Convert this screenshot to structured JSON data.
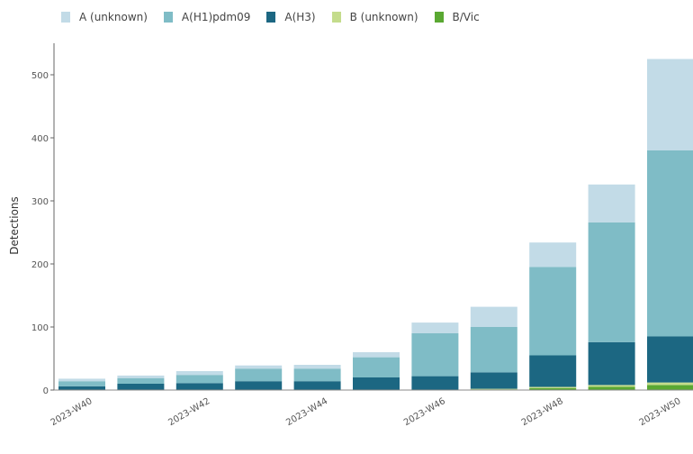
{
  "chart_data": {
    "type": "bar",
    "stacked": true,
    "categories": [
      "2023-W40",
      "2023-W41",
      "2023-W42",
      "2023-W43",
      "2023-W44",
      "2023-W45",
      "2023-W46",
      "2023-W47",
      "2023-W48",
      "2023-W49",
      "2023-W50"
    ],
    "x_tick_labels": [
      "2023-W40",
      "2023-W42",
      "2023-W44",
      "2023-W46",
      "2023-W48",
      "2023-W50"
    ],
    "series": [
      {
        "name": "B/Vic",
        "color": "#5aa832",
        "values": [
          0,
          0,
          0,
          0,
          0,
          0,
          0,
          1,
          3,
          5,
          8
        ]
      },
      {
        "name": "B (unknown)",
        "color": "#c4dc8c",
        "values": [
          0,
          0,
          0,
          0,
          0,
          0,
          0,
          1,
          2,
          3,
          4
        ]
      },
      {
        "name": "A(H3)",
        "color": "#1c6782",
        "values": [
          6,
          10,
          11,
          14,
          14,
          20,
          22,
          26,
          50,
          68,
          73
        ]
      },
      {
        "name": "A(H1)pdm09",
        "color": "#7fbcc6",
        "values": [
          8,
          9,
          13,
          20,
          20,
          32,
          68,
          72,
          140,
          190,
          295
        ]
      },
      {
        "name": "A (unknown)",
        "color": "#c2dbe7",
        "values": [
          4,
          4,
          6,
          5,
          6,
          8,
          17,
          32,
          39,
          60,
          145
        ]
      }
    ],
    "legend_order": [
      "A (unknown)",
      "A(H1)pdm09",
      "A(H3)",
      "B (unknown)",
      "B/Vic"
    ],
    "yticks": [
      0,
      100,
      200,
      300,
      400,
      500
    ],
    "ylim": [
      0,
      550
    ],
    "ylabel": "Detections",
    "xlabel": "",
    "title": "",
    "legend_position": "top",
    "grid": false
  }
}
